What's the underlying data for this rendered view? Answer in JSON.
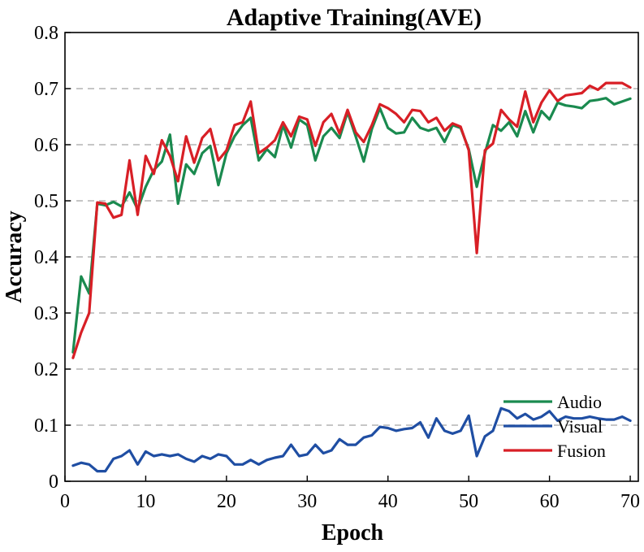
{
  "chart_data": {
    "type": "line",
    "title": "Adaptive Training(AVE)",
    "xlabel": "Epoch",
    "ylabel": "Accuracy",
    "xlim": [
      0,
      71
    ],
    "ylim": [
      0,
      0.8
    ],
    "grid": "horizontal-dashed",
    "legend_position": "bottom-right",
    "x_ticks": [
      0,
      10,
      20,
      30,
      40,
      50,
      60,
      70
    ],
    "x_tick_labels": [
      "0",
      "10",
      "20",
      "30",
      "40",
      "50",
      "60",
      "70"
    ],
    "y_ticks": [
      0,
      0.1,
      0.2,
      0.3,
      0.4,
      0.5,
      0.6,
      0.7,
      0.8
    ],
    "y_tick_labels": [
      "0",
      "0.1",
      "0.2",
      "0.3",
      "0.4",
      "0.5",
      "0.6",
      "0.7",
      "0.8"
    ],
    "x": [
      1,
      2,
      3,
      4,
      5,
      6,
      7,
      8,
      9,
      10,
      11,
      12,
      13,
      14,
      15,
      16,
      17,
      18,
      19,
      20,
      21,
      22,
      23,
      24,
      25,
      26,
      27,
      28,
      29,
      30,
      31,
      32,
      33,
      34,
      35,
      36,
      37,
      38,
      39,
      40,
      41,
      42,
      43,
      44,
      45,
      46,
      47,
      48,
      49,
      50,
      51,
      52,
      53,
      54,
      55,
      56,
      57,
      58,
      59,
      60,
      61,
      62,
      63,
      64,
      65,
      66,
      67,
      68,
      69,
      70
    ],
    "series": [
      {
        "name": "Audio",
        "color": "#1a8a4f",
        "values": [
          0.23,
          0.365,
          0.335,
          0.495,
          0.492,
          0.498,
          0.49,
          0.515,
          0.485,
          0.525,
          0.555,
          0.57,
          0.618,
          0.495,
          0.565,
          0.548,
          0.585,
          0.598,
          0.528,
          0.585,
          0.615,
          0.635,
          0.648,
          0.572,
          0.592,
          0.578,
          0.635,
          0.595,
          0.645,
          0.635,
          0.572,
          0.615,
          0.63,
          0.612,
          0.658,
          0.615,
          0.57,
          0.628,
          0.665,
          0.63,
          0.62,
          0.622,
          0.648,
          0.63,
          0.625,
          0.63,
          0.605,
          0.635,
          0.63,
          0.592,
          0.525,
          0.585,
          0.635,
          0.625,
          0.64,
          0.615,
          0.66,
          0.622,
          0.66,
          0.645,
          0.675,
          0.67,
          0.668,
          0.665,
          0.678,
          0.68,
          0.683,
          0.672,
          0.677,
          0.682
        ]
      },
      {
        "name": "Visual",
        "color": "#1f4ea3",
        "values": [
          0.028,
          0.033,
          0.03,
          0.018,
          0.018,
          0.04,
          0.045,
          0.055,
          0.03,
          0.053,
          0.045,
          0.048,
          0.045,
          0.048,
          0.04,
          0.035,
          0.045,
          0.04,
          0.048,
          0.045,
          0.03,
          0.03,
          0.038,
          0.03,
          0.038,
          0.042,
          0.045,
          0.065,
          0.045,
          0.048,
          0.065,
          0.05,
          0.055,
          0.075,
          0.065,
          0.065,
          0.078,
          0.082,
          0.097,
          0.095,
          0.09,
          0.093,
          0.095,
          0.105,
          0.078,
          0.112,
          0.09,
          0.085,
          0.09,
          0.117,
          0.045,
          0.08,
          0.09,
          0.13,
          0.125,
          0.112,
          0.12,
          0.11,
          0.115,
          0.125,
          0.108,
          0.115,
          0.112,
          0.112,
          0.115,
          0.112,
          0.11,
          0.11,
          0.115,
          0.108
        ]
      },
      {
        "name": "Fusion",
        "color": "#d81f26",
        "values": [
          0.22,
          0.265,
          0.3,
          0.497,
          0.495,
          0.47,
          0.475,
          0.572,
          0.475,
          0.58,
          0.548,
          0.608,
          0.58,
          0.535,
          0.615,
          0.568,
          0.612,
          0.628,
          0.572,
          0.59,
          0.635,
          0.64,
          0.677,
          0.585,
          0.595,
          0.608,
          0.64,
          0.615,
          0.65,
          0.645,
          0.598,
          0.64,
          0.655,
          0.62,
          0.662,
          0.622,
          0.605,
          0.635,
          0.672,
          0.665,
          0.655,
          0.64,
          0.662,
          0.66,
          0.64,
          0.648,
          0.625,
          0.638,
          0.632,
          0.59,
          0.407,
          0.59,
          0.602,
          0.662,
          0.645,
          0.632,
          0.695,
          0.64,
          0.675,
          0.697,
          0.678,
          0.688,
          0.69,
          0.692,
          0.705,
          0.698,
          0.71,
          0.71,
          0.71,
          0.702
        ]
      }
    ]
  }
}
